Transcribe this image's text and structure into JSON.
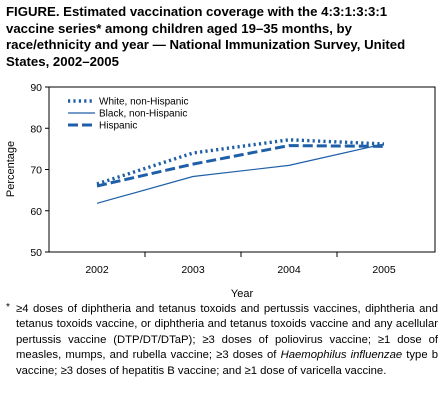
{
  "figure": {
    "title": "FIGURE. Estimated vaccination coverage with the 4:3:1:3:3:1 vaccine series* among children aged 19–35 months, by race/ethnicity and year — National Immunization Survey, United States, 2002–2005"
  },
  "chart_data": {
    "type": "line",
    "x": [
      "2002",
      "2003",
      "2004",
      "2005"
    ],
    "xlabel": "Year",
    "ylabel": "Percentage",
    "ylim": [
      50,
      90
    ],
    "yticks": [
      50,
      60,
      70,
      80,
      90
    ],
    "grid": false,
    "legend_position": "top-left",
    "series": [
      {
        "name": "White, non-Hispanic",
        "values": [
          66.5,
          74.0,
          77.2,
          76.2
        ],
        "color": "#1f5fa8",
        "style": "dotted"
      },
      {
        "name": "Black, non-Hispanic",
        "values": [
          61.8,
          68.3,
          71.0,
          76.2
        ],
        "color": "#1f5fa8",
        "style": "solid"
      },
      {
        "name": "Hispanic",
        "values": [
          66.0,
          71.3,
          75.8,
          75.6
        ],
        "color": "#1f5fa8",
        "style": "dashed"
      }
    ]
  },
  "footnote": {
    "mark": "*",
    "text_1": "≥4 doses of diphtheria and tetanus toxoids and pertussis vaccines, diphtheria and tetanus toxoids vaccine, or diphtheria and tetanus toxoids vaccine and any acellular pertussis vaccine (DTP/DT/DTaP); ≥3 doses of poliovirus vaccine; ≥1 dose of measles, mumps, and rubella vaccine; ≥3 doses of",
    "italic": "Haemophilus influenzae",
    "text_2": "type b vaccine; ≥3 doses of hepatitis B vaccine; and ≥1 dose of varicella vaccine."
  }
}
